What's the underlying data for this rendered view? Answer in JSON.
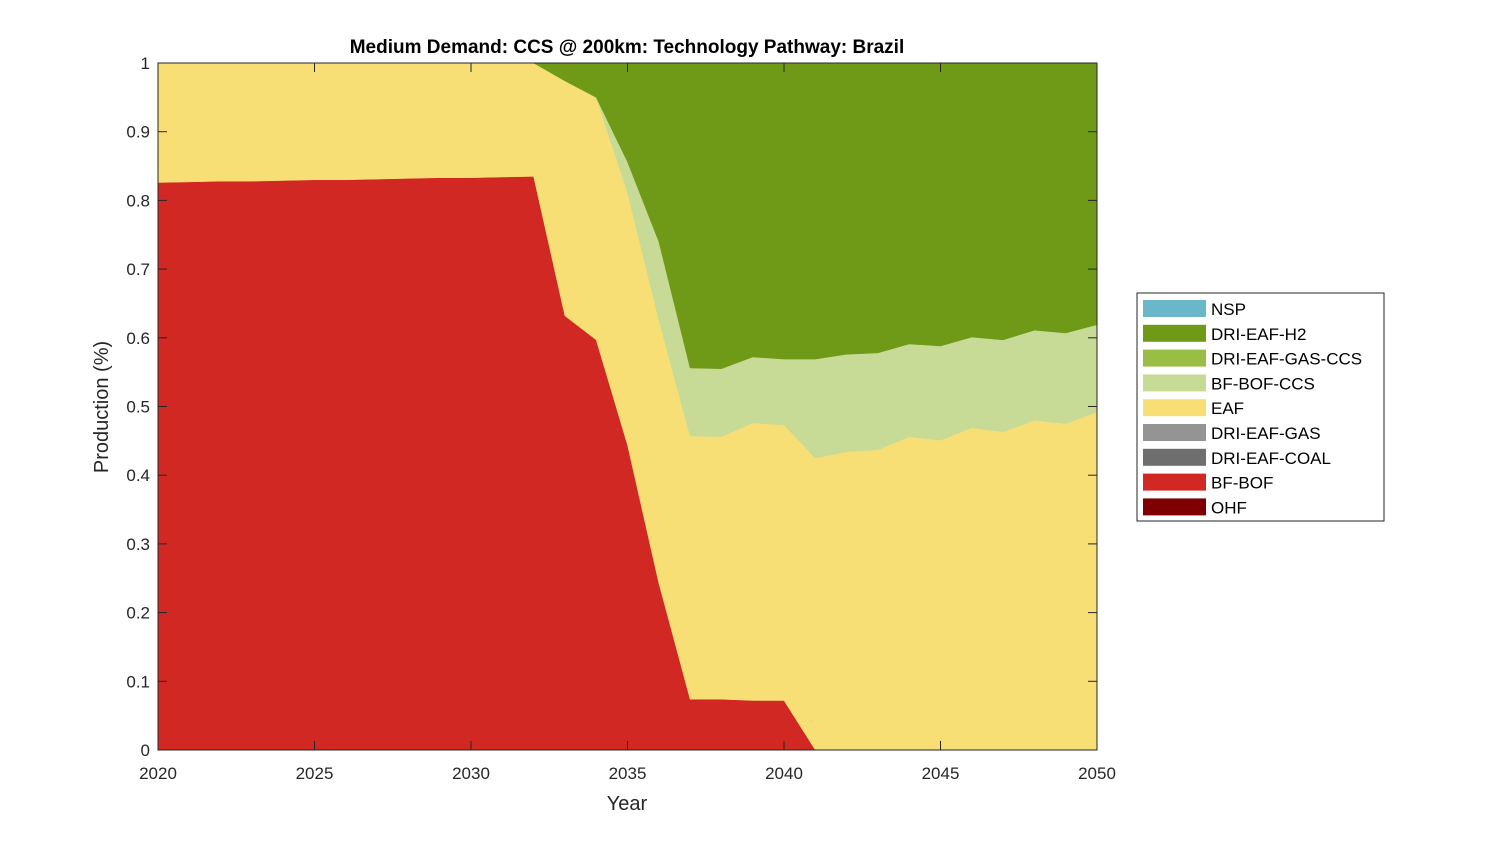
{
  "chart_data": {
    "type": "area",
    "stacked": true,
    "title": "Medium Demand: CCS @ 200km: Technology Pathway: Brazil",
    "xlabel": "Year",
    "ylabel": "Production (%)",
    "xlim": [
      2020,
      2050
    ],
    "ylim": [
      0,
      1
    ],
    "xticks": [
      2020,
      2025,
      2030,
      2035,
      2040,
      2045,
      2050
    ],
    "yticks": [
      0,
      0.1,
      0.2,
      0.3,
      0.4,
      0.5,
      0.6,
      0.7,
      0.8,
      0.9,
      1
    ],
    "ytick_labels": [
      "0",
      "0.1",
      "0.2",
      "0.3",
      "0.4",
      "0.5",
      "0.6",
      "0.7",
      "0.8",
      "0.9",
      "1"
    ],
    "grid": false,
    "legend_position": "right",
    "x": [
      2020,
      2021,
      2022,
      2023,
      2024,
      2025,
      2026,
      2027,
      2028,
      2029,
      2030,
      2031,
      2032,
      2033,
      2034,
      2035,
      2036,
      2037,
      2038,
      2039,
      2040,
      2041,
      2042,
      2043,
      2044,
      2045,
      2046,
      2047,
      2048,
      2049,
      2050
    ],
    "series": [
      {
        "name": "OHF",
        "color": "#7f0000",
        "values": [
          0,
          0,
          0,
          0,
          0,
          0,
          0,
          0,
          0,
          0,
          0,
          0,
          0,
          0,
          0,
          0,
          0,
          0,
          0,
          0,
          0,
          0,
          0,
          0,
          0,
          0,
          0,
          0,
          0,
          0,
          0
        ]
      },
      {
        "name": "BF-BOF",
        "color": "#d12824",
        "values": [
          0.826,
          0.827,
          0.828,
          0.828,
          0.829,
          0.83,
          0.83,
          0.831,
          0.832,
          0.833,
          0.833,
          0.834,
          0.835,
          0.632,
          0.597,
          0.444,
          0.243,
          0.074,
          0.074,
          0.072,
          0.072,
          0,
          0,
          0,
          0,
          0,
          0,
          0,
          0,
          0,
          0
        ]
      },
      {
        "name": "DRI-EAF-COAL",
        "color": "#6e6e6e",
        "values": [
          0,
          0,
          0,
          0,
          0,
          0,
          0,
          0,
          0,
          0,
          0,
          0,
          0,
          0,
          0,
          0,
          0,
          0,
          0,
          0,
          0,
          0,
          0,
          0,
          0,
          0,
          0,
          0,
          0,
          0,
          0
        ]
      },
      {
        "name": "DRI-EAF-GAS",
        "color": "#949494",
        "values": [
          0,
          0,
          0,
          0,
          0,
          0,
          0,
          0,
          0,
          0,
          0,
          0,
          0,
          0,
          0,
          0,
          0,
          0,
          0,
          0,
          0,
          0,
          0,
          0,
          0,
          0,
          0,
          0,
          0,
          0,
          0
        ]
      },
      {
        "name": "EAF",
        "color": "#f7df76",
        "values": [
          0.174,
          0.173,
          0.172,
          0.172,
          0.171,
          0.17,
          0.17,
          0.169,
          0.168,
          0.167,
          0.167,
          0.166,
          0.165,
          0.342,
          0.353,
          0.367,
          0.383,
          0.383,
          0.382,
          0.404,
          0.401,
          0.425,
          0.434,
          0.437,
          0.456,
          0.451,
          0.469,
          0.463,
          0.48,
          0.475,
          0.492
        ]
      },
      {
        "name": "BF-BOF-CCS",
        "color": "#c7db97",
        "values": [
          0,
          0,
          0,
          0,
          0,
          0,
          0,
          0,
          0,
          0,
          0,
          0,
          0,
          0,
          0,
          0.045,
          0.114,
          0.099,
          0.099,
          0.096,
          0.096,
          0.144,
          0.142,
          0.141,
          0.135,
          0.137,
          0.132,
          0.134,
          0.131,
          0.132,
          0.127
        ]
      },
      {
        "name": "DRI-EAF-GAS-CCS",
        "color": "#99bd45",
        "values": [
          0,
          0,
          0,
          0,
          0,
          0,
          0,
          0,
          0,
          0,
          0,
          0,
          0,
          0,
          0,
          0,
          0,
          0,
          0,
          0,
          0,
          0,
          0,
          0,
          0,
          0,
          0,
          0,
          0,
          0,
          0
        ]
      },
      {
        "name": "DRI-EAF-H2",
        "color": "#6f9a18",
        "values": [
          0,
          0,
          0,
          0,
          0,
          0,
          0,
          0,
          0,
          0,
          0,
          0,
          0,
          0.026,
          0.05,
          0.144,
          0.26,
          0.444,
          0.445,
          0.428,
          0.431,
          0.431,
          0.424,
          0.422,
          0.409,
          0.412,
          0.399,
          0.403,
          0.389,
          0.393,
          0.381
        ]
      },
      {
        "name": "NSP",
        "color": "#69b7c8",
        "values": [
          0,
          0,
          0,
          0,
          0,
          0,
          0,
          0,
          0,
          0,
          0,
          0,
          0,
          0,
          0,
          0,
          0,
          0,
          0,
          0,
          0,
          0,
          0,
          0,
          0,
          0,
          0,
          0,
          0,
          0,
          0
        ]
      }
    ],
    "legend_order": [
      "NSP",
      "DRI-EAF-H2",
      "DRI-EAF-GAS-CCS",
      "BF-BOF-CCS",
      "EAF",
      "DRI-EAF-GAS",
      "DRI-EAF-COAL",
      "BF-BOF",
      "OHF"
    ]
  }
}
